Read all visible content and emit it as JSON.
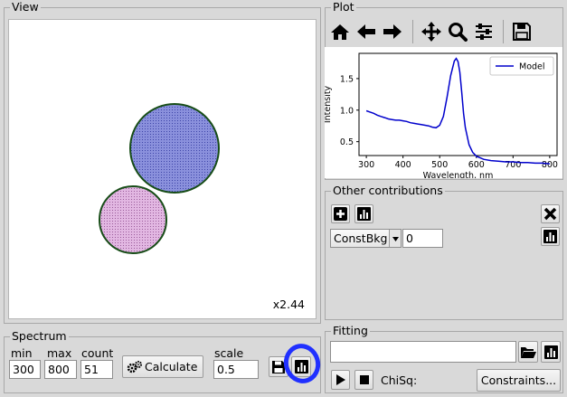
{
  "view": {
    "title": "View",
    "zoom_label": "x2.44"
  },
  "plot": {
    "title": "Plot",
    "toolbar_icons": [
      "home-icon",
      "back-arrow-icon",
      "forward-arrow-icon",
      "pan-icon",
      "zoom-icon",
      "configure-subplots-icon",
      "save-icon"
    ],
    "chart_data": {
      "type": "line",
      "xlabel": "Wavelength, nm",
      "ylabel": "Intensity",
      "xlim": [
        280,
        820
      ],
      "ylim": [
        0.28,
        1.9
      ],
      "xticks": [
        "300",
        "400",
        "500",
        "600",
        "700",
        "800"
      ],
      "yticks": [
        "0.5",
        "1.0",
        "1.5"
      ],
      "legend_position": "top-right",
      "series": [
        {
          "name": "Model",
          "color": "#0000cc",
          "x": [
            300,
            310,
            320,
            330,
            340,
            350,
            360,
            370,
            380,
            390,
            400,
            410,
            420,
            430,
            440,
            450,
            460,
            470,
            480,
            490,
            500,
            510,
            520,
            530,
            540,
            545,
            550,
            555,
            560,
            565,
            570,
            580,
            590,
            600,
            620,
            640,
            660,
            680,
            700,
            720,
            740,
            760,
            780,
            800
          ],
          "y": [
            0.99,
            0.97,
            0.95,
            0.92,
            0.9,
            0.88,
            0.86,
            0.85,
            0.84,
            0.84,
            0.83,
            0.82,
            0.8,
            0.79,
            0.78,
            0.77,
            0.76,
            0.75,
            0.73,
            0.72,
            0.76,
            0.9,
            1.2,
            1.55,
            1.78,
            1.82,
            1.77,
            1.6,
            1.28,
            0.95,
            0.72,
            0.45,
            0.33,
            0.27,
            0.22,
            0.2,
            0.19,
            0.18,
            0.18,
            0.17,
            0.17,
            0.16,
            0.16,
            0.15
          ]
        }
      ]
    }
  },
  "other": {
    "title": "Other contributions",
    "select_value": "ConstBkg",
    "param_value": "0"
  },
  "spectrum": {
    "title": "Spectrum",
    "min_label": "min",
    "max_label": "max",
    "count_label": "count",
    "scale_label": "scale",
    "min_value": "300",
    "max_value": "800",
    "count_value": "51",
    "scale_value": "0.5",
    "calculate_label": "Calculate"
  },
  "fitting": {
    "title": "Fitting",
    "path_value": "",
    "chisq_label": "ChiSq:",
    "constraints_label": "Constraints..."
  },
  "colors": {
    "accent_ring": "#2030ff",
    "big_sphere": "#7f86d4",
    "small_sphere": "#d8a8d8",
    "outline": "#1a5a1a",
    "line": "#0000cc"
  }
}
